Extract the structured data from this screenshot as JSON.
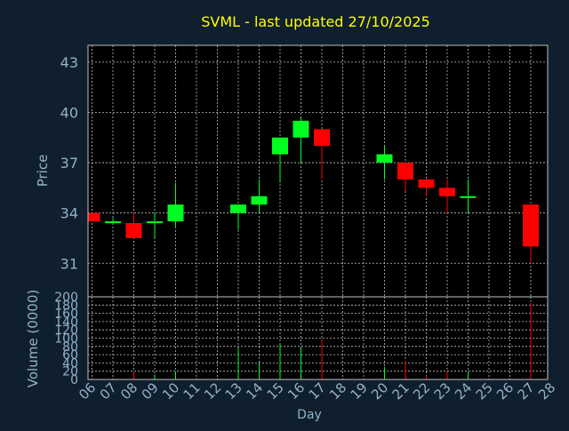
{
  "chart_data": {
    "type": "candlestick",
    "title": "SVML - last updated 27/10/2025",
    "ylabel_price": "Price",
    "ylabel_volume": "Volume (0000)",
    "xlabel": "Day",
    "price_ylim": [
      29.0,
      44.0
    ],
    "price_yticks": [
      31,
      34,
      37,
      40,
      43
    ],
    "volume_ylim": [
      0,
      200
    ],
    "volume_yticks": [
      0,
      20,
      40,
      60,
      80,
      100,
      120,
      140,
      160,
      180,
      200
    ],
    "x_ticks": [
      "06",
      "07",
      "08",
      "09",
      "10",
      "11",
      "12",
      "13",
      "14",
      "15",
      "16",
      "17",
      "18",
      "19",
      "20",
      "21",
      "22",
      "23",
      "24",
      "25",
      "26",
      "27",
      "28"
    ],
    "grid": true,
    "candles": [
      {
        "day": "06",
        "open": 34.0,
        "high": 34.0,
        "low": 33.5,
        "close": 33.5,
        "volume": 0
      },
      {
        "day": "07",
        "open": 33.4,
        "high": 33.7,
        "low": 33.4,
        "close": 33.5,
        "volume": 2
      },
      {
        "day": "08",
        "open": 33.4,
        "high": 34.0,
        "low": 32.5,
        "close": 32.5,
        "volume": 20
      },
      {
        "day": "09",
        "open": 33.4,
        "high": 34.0,
        "low": 32.5,
        "close": 33.5,
        "volume": 12
      },
      {
        "day": "10",
        "open": 33.5,
        "high": 35.8,
        "low": 33.2,
        "close": 34.5,
        "volume": 20
      },
      {
        "day": "13",
        "open": 34.0,
        "high": 34.5,
        "low": 33.0,
        "close": 34.5,
        "volume": 75
      },
      {
        "day": "14",
        "open": 34.5,
        "high": 36.0,
        "low": 34.0,
        "close": 35.0,
        "volume": 40
      },
      {
        "day": "15",
        "open": 37.5,
        "high": 38.5,
        "low": 35.8,
        "close": 38.5,
        "volume": 88
      },
      {
        "day": "16",
        "open": 38.5,
        "high": 39.7,
        "low": 37.0,
        "close": 39.5,
        "volume": 78
      },
      {
        "day": "17",
        "open": 39.0,
        "high": 39.0,
        "low": 36.0,
        "close": 38.0,
        "volume": 95
      },
      {
        "day": "20",
        "open": 37.0,
        "high": 38.0,
        "low": 36.0,
        "close": 37.5,
        "volume": 30
      },
      {
        "day": "21",
        "open": 37.0,
        "high": 37.0,
        "low": 35.3,
        "close": 36.0,
        "volume": 45
      },
      {
        "day": "22",
        "open": 36.0,
        "high": 36.0,
        "low": 35.0,
        "close": 35.5,
        "volume": 8
      },
      {
        "day": "23",
        "open": 35.5,
        "high": 36.0,
        "low": 34.0,
        "close": 35.0,
        "volume": 18
      },
      {
        "day": "24",
        "open": 35.0,
        "high": 36.0,
        "low": 34.0,
        "close": 35.0,
        "volume": 18
      },
      {
        "day": "27",
        "open": 34.5,
        "high": 34.5,
        "low": 31.0,
        "close": 32.0,
        "volume": 185
      }
    ],
    "colors": {
      "background": "#0f1f2e",
      "plot": "#000000",
      "up": "#00ff21",
      "down": "#ff0000",
      "text": "#93b2c8",
      "title": "#ffff00",
      "grid": "#c0c0c0"
    }
  }
}
